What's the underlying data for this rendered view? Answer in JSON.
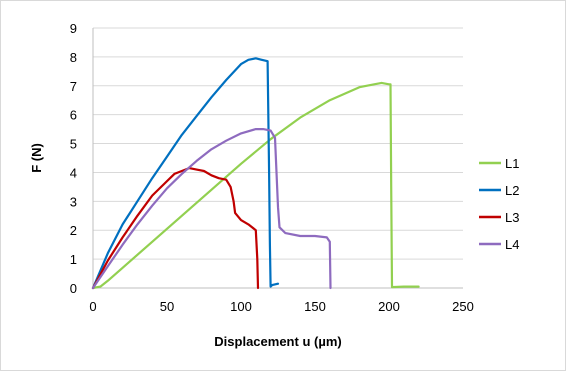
{
  "chart_data": {
    "type": "line",
    "title": "",
    "xlabel": "Displacement u (µm)",
    "ylabel": "F (N)",
    "xlim": [
      0,
      250
    ],
    "ylim": [
      0,
      9
    ],
    "xticks": [
      0,
      50,
      100,
      150,
      200,
      250
    ],
    "yticks": [
      0,
      1,
      2,
      3,
      4,
      5,
      6,
      7,
      8,
      9
    ],
    "grid": "horizontal",
    "legend_position": "right",
    "series": [
      {
        "name": "L1",
        "color": "#92d050",
        "x": [
          0,
          5,
          10,
          20,
          40,
          60,
          80,
          100,
          120,
          140,
          160,
          180,
          190,
          195,
          200,
          201,
          201.5,
          202,
          210,
          220
        ],
        "y": [
          0,
          0.05,
          0.25,
          0.7,
          1.6,
          2.5,
          3.4,
          4.3,
          5.15,
          5.9,
          6.5,
          6.95,
          7.05,
          7.1,
          7.05,
          7.05,
          3.5,
          0.03,
          0.05,
          0.05
        ]
      },
      {
        "name": "L2",
        "color": "#0070c0",
        "x": [
          0,
          5,
          10,
          20,
          30,
          40,
          50,
          60,
          70,
          80,
          90,
          100,
          105,
          110,
          114,
          118,
          119,
          119.5,
          120,
          121,
          125
        ],
        "y": [
          0,
          0.6,
          1.2,
          2.2,
          3.0,
          3.8,
          4.55,
          5.3,
          5.95,
          6.6,
          7.2,
          7.75,
          7.9,
          7.95,
          7.9,
          7.85,
          4.0,
          1.5,
          0.05,
          0.1,
          0.15
        ]
      },
      {
        "name": "L3",
        "color": "#c00000",
        "x": [
          0,
          10,
          20,
          30,
          40,
          50,
          55,
          60,
          65,
          70,
          75,
          80,
          85,
          90,
          93,
          95,
          96,
          100,
          105,
          110,
          111,
          111.5
        ],
        "y": [
          0,
          0.95,
          1.75,
          2.5,
          3.2,
          3.7,
          3.95,
          4.05,
          4.15,
          4.1,
          4.05,
          3.9,
          3.8,
          3.75,
          3.5,
          3.0,
          2.6,
          2.35,
          2.2,
          2.0,
          1.0,
          0
        ]
      },
      {
        "name": "L4",
        "color": "#8e6bbf",
        "x": [
          0,
          10,
          20,
          30,
          40,
          50,
          60,
          70,
          80,
          90,
          100,
          110,
          115,
          120,
          123,
          124,
          125,
          126,
          130,
          140,
          150,
          158,
          160,
          160.5
        ],
        "y": [
          0,
          0.75,
          1.5,
          2.2,
          2.85,
          3.45,
          3.95,
          4.4,
          4.8,
          5.1,
          5.35,
          5.5,
          5.5,
          5.45,
          5.2,
          4.0,
          2.8,
          2.1,
          1.9,
          1.8,
          1.8,
          1.75,
          1.6,
          0
        ]
      }
    ]
  }
}
